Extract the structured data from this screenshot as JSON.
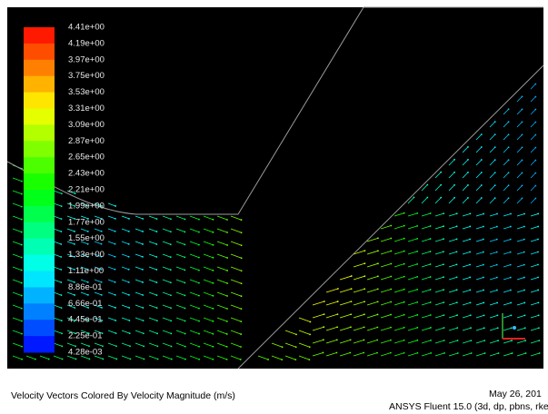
{
  "colorbar": {
    "labels": [
      "4.41e+00",
      "4.19e+00",
      "3.97e+00",
      "3.75e+00",
      "3.53e+00",
      "3.31e+00",
      "3.09e+00",
      "2.87e+00",
      "2.65e+00",
      "2.43e+00",
      "2.21e+00",
      "1.99e+00",
      "1.77e+00",
      "1.55e+00",
      "1.33e+00",
      "1.11e+00",
      "8.86e-01",
      "6.66e-01",
      "4.45e-01",
      "2.25e-01",
      "4.28e-03"
    ]
  },
  "footer": {
    "title": "Velocity Vectors Colored By Velocity Magnitude (m/s)",
    "date": "May 26, 201",
    "version": "ANSYS Fluent 15.0 (3d, dp, pbns, rke"
  }
}
